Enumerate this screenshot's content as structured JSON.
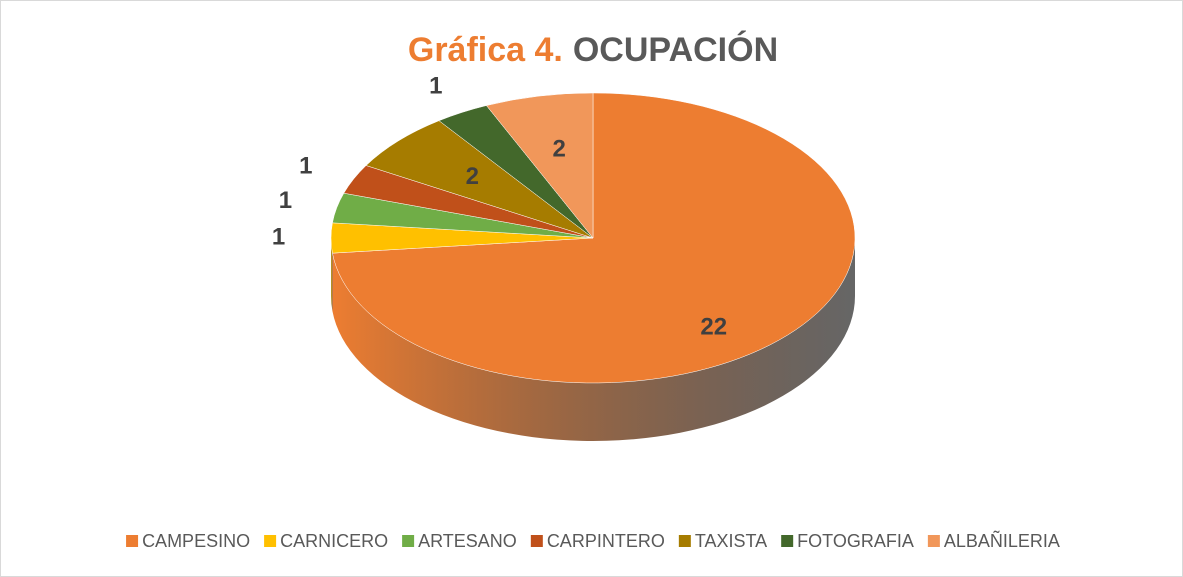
{
  "chart_data": {
    "type": "pie3d",
    "title": [
      "Gráfica 4.",
      "OCUPACIÓN"
    ],
    "categories": [
      "CAMPESINO",
      "CARNICERO",
      "ARTESANO",
      "CARPINTERO",
      "TAXISTA",
      "FOTOGRAFIA",
      "ALBAÑILERIA"
    ],
    "values": [
      22,
      1,
      1,
      1,
      2,
      1,
      2
    ],
    "colors": [
      "#ED7D31",
      "#FFC000",
      "#70AD47",
      "#C0501A",
      "#A67C00",
      "#43682B",
      "#F1975A"
    ],
    "legend": "bottom"
  }
}
